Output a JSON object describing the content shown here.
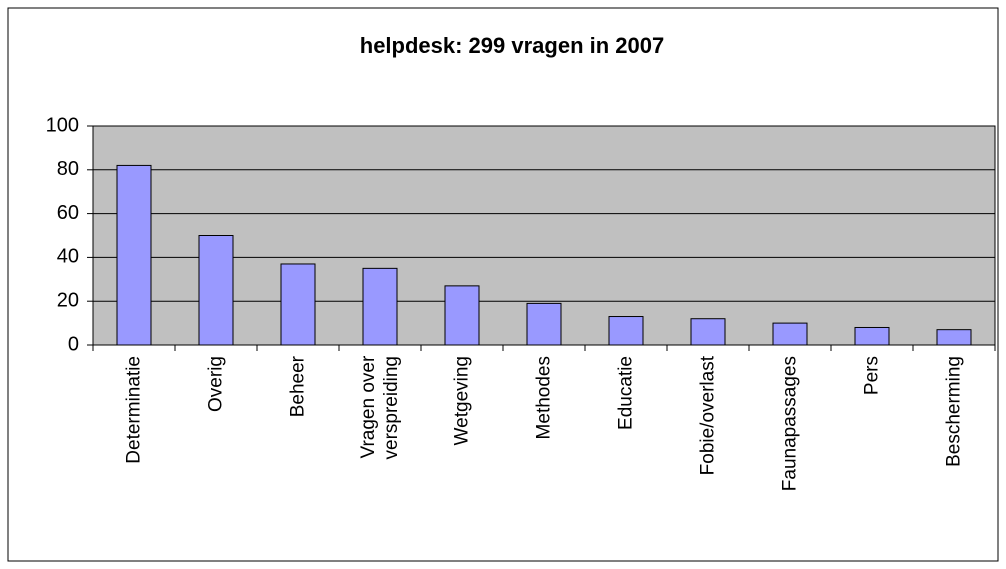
{
  "chart_data": {
    "type": "bar",
    "title": "helpdesk: 299 vragen in 2007",
    "categories": [
      "Determinatie",
      "Overig",
      "Beheer",
      "Vragen over\nverspreiding",
      "Wetgeving",
      "Methodes",
      "Educatie",
      "Fobie/overlast",
      "Faunapassages",
      "Pers",
      "Bescherming"
    ],
    "values": [
      82,
      50,
      37,
      35,
      27,
      19,
      13,
      12,
      10,
      8,
      7
    ],
    "color": "#9999ff",
    "plot_background": "#c0c0c0",
    "ylim": [
      0,
      100
    ],
    "yticks": [
      0,
      20,
      40,
      60,
      80,
      100
    ],
    "grid": true
  }
}
